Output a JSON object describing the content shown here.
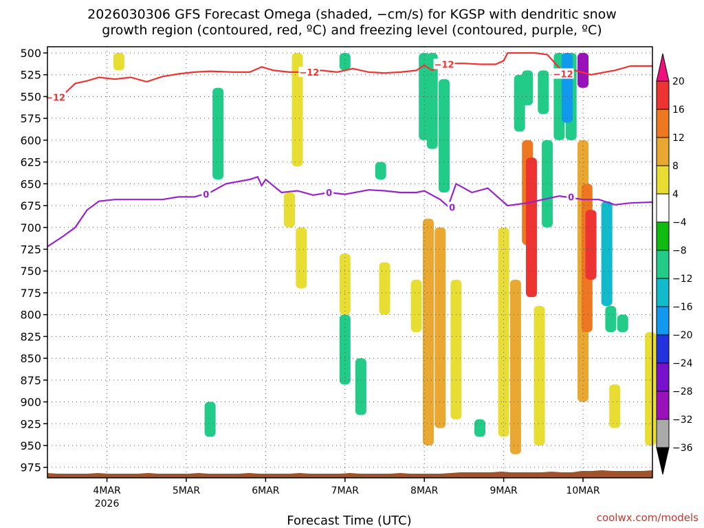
{
  "chart_data": {
    "type": "heatmap",
    "title_lines": [
      "2026030306 GFS Forecast Omega (shaded, −cm/s) for KGSP with dendritic snow",
      "growth region (contoured, red, ºC) and freezing level (contoured, purple, ºC)"
    ],
    "xlabel": "Forecast Time (UTC)",
    "ylabel": "",
    "y_axis": {
      "reversed": true,
      "range": [
        500,
        1000
      ],
      "ticks": [
        500,
        525,
        550,
        575,
        600,
        625,
        650,
        675,
        700,
        725,
        750,
        775,
        800,
        825,
        850,
        875,
        900,
        925,
        950,
        975
      ]
    },
    "x_axis": {
      "range": [
        "2026-03-03 06Z",
        "2026-03-10 21Z"
      ],
      "ticks": [
        {
          "label": "4MAR",
          "sublabel": "2026",
          "day": 4
        },
        {
          "label": "5MAR",
          "sublabel": "",
          "day": 5
        },
        {
          "label": "6MAR",
          "sublabel": "",
          "day": 6
        },
        {
          "label": "7MAR",
          "sublabel": "",
          "day": 7
        },
        {
          "label": "8MAR",
          "sublabel": "",
          "day": 8
        },
        {
          "label": "9MAR",
          "sublabel": "",
          "day": 9
        },
        {
          "label": "10MAR",
          "sublabel": "",
          "day": 10
        }
      ]
    },
    "grid": true,
    "colorbar": {
      "levels": [
        "20",
        "16",
        "12",
        "8",
        "4",
        "−4",
        "−8",
        "−12",
        "−16",
        "−20",
        "−24",
        "−28",
        "−32",
        "−36"
      ],
      "colors": [
        "#f00f7f",
        "#ee3333",
        "#ee7722",
        "#e9a832",
        "#e8dd33",
        "#ffffff",
        "#11bb11",
        "#22cc88",
        "#11bbcc",
        "#1199ee",
        "#2233dd",
        "#7711cc",
        "#9911bb",
        "#aaaaaa",
        "#000000"
      ]
    },
    "dendritic_line": {
      "color": "#ee3333",
      "label": "−12",
      "label_alt": "-12",
      "points": [
        [
          3.25,
          553
        ],
        [
          3.45,
          548
        ],
        [
          3.6,
          535
        ],
        [
          3.75,
          532
        ],
        [
          3.9,
          528
        ],
        [
          4.1,
          530
        ],
        [
          4.3,
          528
        ],
        [
          4.5,
          533
        ],
        [
          4.7,
          527
        ],
        [
          4.9,
          524
        ],
        [
          5.1,
          522
        ],
        [
          5.3,
          521
        ],
        [
          5.6,
          522
        ],
        [
          5.8,
          522
        ],
        [
          5.95,
          516
        ],
        [
          6.1,
          520
        ],
        [
          6.3,
          522
        ],
        [
          6.5,
          522
        ],
        [
          6.7,
          520
        ],
        [
          6.9,
          522
        ],
        [
          7.1,
          518
        ],
        [
          7.3,
          522
        ],
        [
          7.5,
          523
        ],
        [
          7.7,
          522
        ],
        [
          7.9,
          520
        ],
        [
          8.0,
          514
        ],
        [
          8.1,
          520
        ],
        [
          8.3,
          512
        ],
        [
          8.5,
          512
        ],
        [
          8.7,
          513
        ],
        [
          8.9,
          513
        ],
        [
          9.0,
          509
        ],
        [
          9.05,
          500
        ],
        [
          9.25,
          500
        ],
        [
          9.4,
          500
        ],
        [
          9.55,
          502
        ],
        [
          9.75,
          522
        ],
        [
          9.9,
          520
        ],
        [
          10.1,
          525
        ],
        [
          10.4,
          520
        ],
        [
          10.6,
          515
        ],
        [
          10.88,
          515
        ]
      ]
    },
    "freezing_line": {
      "color": "#9922cc",
      "label": "0",
      "points": [
        [
          3.25,
          722
        ],
        [
          3.45,
          710
        ],
        [
          3.6,
          700
        ],
        [
          3.75,
          680
        ],
        [
          3.9,
          670
        ],
        [
          4.1,
          668
        ],
        [
          4.3,
          668
        ],
        [
          4.5,
          668
        ],
        [
          4.7,
          668
        ],
        [
          4.9,
          665
        ],
        [
          5.1,
          665
        ],
        [
          5.3,
          660
        ],
        [
          5.5,
          650
        ],
        [
          5.8,
          645
        ],
        [
          5.9,
          642
        ],
        [
          5.95,
          652
        ],
        [
          6.0,
          645
        ],
        [
          6.2,
          660
        ],
        [
          6.4,
          658
        ],
        [
          6.6,
          663
        ],
        [
          6.8,
          660
        ],
        [
          7.0,
          662
        ],
        [
          7.3,
          657
        ],
        [
          7.5,
          658
        ],
        [
          7.7,
          660
        ],
        [
          7.9,
          660
        ],
        [
          8.0,
          658
        ],
        [
          8.2,
          668
        ],
        [
          8.3,
          676
        ],
        [
          8.4,
          650
        ],
        [
          8.6,
          660
        ],
        [
          8.8,
          655
        ],
        [
          8.95,
          667
        ],
        [
          9.05,
          675
        ],
        [
          9.3,
          672
        ],
        [
          9.5,
          668
        ],
        [
          9.7,
          664
        ],
        [
          9.85,
          666
        ],
        [
          10.0,
          668
        ],
        [
          10.2,
          668
        ],
        [
          10.4,
          674
        ],
        [
          10.6,
          672
        ],
        [
          10.88,
          671
        ]
      ]
    },
    "contour_labels": [
      {
        "text": "−12",
        "day": 3.35,
        "p": 551,
        "color": "#ee3333"
      },
      {
        "text": "−12",
        "day": 6.55,
        "p": 522,
        "color": "#ee3333"
      },
      {
        "text": "−12",
        "day": 8.25,
        "p": 513,
        "color": "#ee3333"
      },
      {
        "text": "−12",
        "day": 9.75,
        "p": 524,
        "color": "#ee3333"
      },
      {
        "text": "0",
        "day": 5.25,
        "p": 662,
        "color": "#9922cc"
      },
      {
        "text": "0",
        "day": 6.8,
        "p": 660,
        "color": "#9922cc"
      },
      {
        "text": "0",
        "day": 8.35,
        "p": 677,
        "color": "#9922cc"
      },
      {
        "text": "0",
        "day": 9.85,
        "p": 665,
        "color": "#9922cc"
      }
    ],
    "omega_patches": [
      {
        "day": 4.15,
        "p1": 500,
        "p2": 520,
        "v": 4
      },
      {
        "day": 6.4,
        "p1": 500,
        "p2": 630,
        "v": 4
      },
      {
        "day": 5.4,
        "p1": 540,
        "p2": 645,
        "v": -8
      },
      {
        "day": 7.0,
        "p1": 500,
        "p2": 520,
        "v": -8
      },
      {
        "day": 7.45,
        "p1": 625,
        "p2": 645,
        "v": -8
      },
      {
        "day": 8.0,
        "p1": 500,
        "p2": 600,
        "v": -8
      },
      {
        "day": 8.1,
        "p1": 500,
        "p2": 610,
        "v": -8
      },
      {
        "day": 8.25,
        "p1": 530,
        "p2": 660,
        "v": -8
      },
      {
        "day": 7.0,
        "p1": 800,
        "p2": 880,
        "v": -8
      },
      {
        "day": 7.2,
        "p1": 850,
        "p2": 915,
        "v": -8
      },
      {
        "day": 5.3,
        "p1": 900,
        "p2": 940,
        "v": -8
      },
      {
        "day": 8.7,
        "p1": 920,
        "p2": 940,
        "v": -8
      },
      {
        "day": 6.3,
        "p1": 660,
        "p2": 700,
        "v": 4
      },
      {
        "day": 6.45,
        "p1": 700,
        "p2": 770,
        "v": 4
      },
      {
        "day": 7.0,
        "p1": 730,
        "p2": 800,
        "v": 4
      },
      {
        "day": 7.5,
        "p1": 740,
        "p2": 800,
        "v": 4
      },
      {
        "day": 7.9,
        "p1": 760,
        "p2": 820,
        "v": 4
      },
      {
        "day": 8.05,
        "p1": 690,
        "p2": 950,
        "v": 8
      },
      {
        "day": 8.2,
        "p1": 700,
        "p2": 930,
        "v": 8
      },
      {
        "day": 8.4,
        "p1": 760,
        "p2": 920,
        "v": 4
      },
      {
        "day": 9.0,
        "p1": 700,
        "p2": 940,
        "v": 4
      },
      {
        "day": 9.15,
        "p1": 760,
        "p2": 960,
        "v": 8
      },
      {
        "day": 9.3,
        "p1": 600,
        "p2": 720,
        "v": 12
      },
      {
        "day": 9.35,
        "p1": 620,
        "p2": 780,
        "v": 16
      },
      {
        "day": 9.55,
        "p1": 600,
        "p2": 700,
        "v": -8
      },
      {
        "day": 9.45,
        "p1": 790,
        "p2": 950,
        "v": 4
      },
      {
        "day": 9.2,
        "p1": 525,
        "p2": 590,
        "v": -8
      },
      {
        "day": 9.3,
        "p1": 520,
        "p2": 560,
        "v": -8
      },
      {
        "day": 9.5,
        "p1": 520,
        "p2": 570,
        "v": -8
      },
      {
        "day": 9.7,
        "p1": 500,
        "p2": 600,
        "v": -8
      },
      {
        "day": 9.85,
        "p1": 500,
        "p2": 600,
        "v": -8
      },
      {
        "day": 9.8,
        "p1": 500,
        "p2": 580,
        "v": -16
      },
      {
        "day": 10.0,
        "p1": 500,
        "p2": 540,
        "v": -28
      },
      {
        "day": 10.0,
        "p1": 600,
        "p2": 900,
        "v": 8
      },
      {
        "day": 10.05,
        "p1": 650,
        "p2": 820,
        "v": 12
      },
      {
        "day": 10.1,
        "p1": 680,
        "p2": 760,
        "v": 16
      },
      {
        "day": 10.3,
        "p1": 670,
        "p2": 790,
        "v": -12
      },
      {
        "day": 10.35,
        "p1": 790,
        "p2": 820,
        "v": -8
      },
      {
        "day": 10.5,
        "p1": 800,
        "p2": 820,
        "v": -8
      },
      {
        "day": 10.4,
        "p1": 880,
        "p2": 930,
        "v": 4
      },
      {
        "day": 10.85,
        "p1": 820,
        "p2": 950,
        "v": 4
      }
    ],
    "terrain": {
      "color": "#a0522d",
      "p_top": 980
    }
  },
  "credit": "coolwx.com/models"
}
